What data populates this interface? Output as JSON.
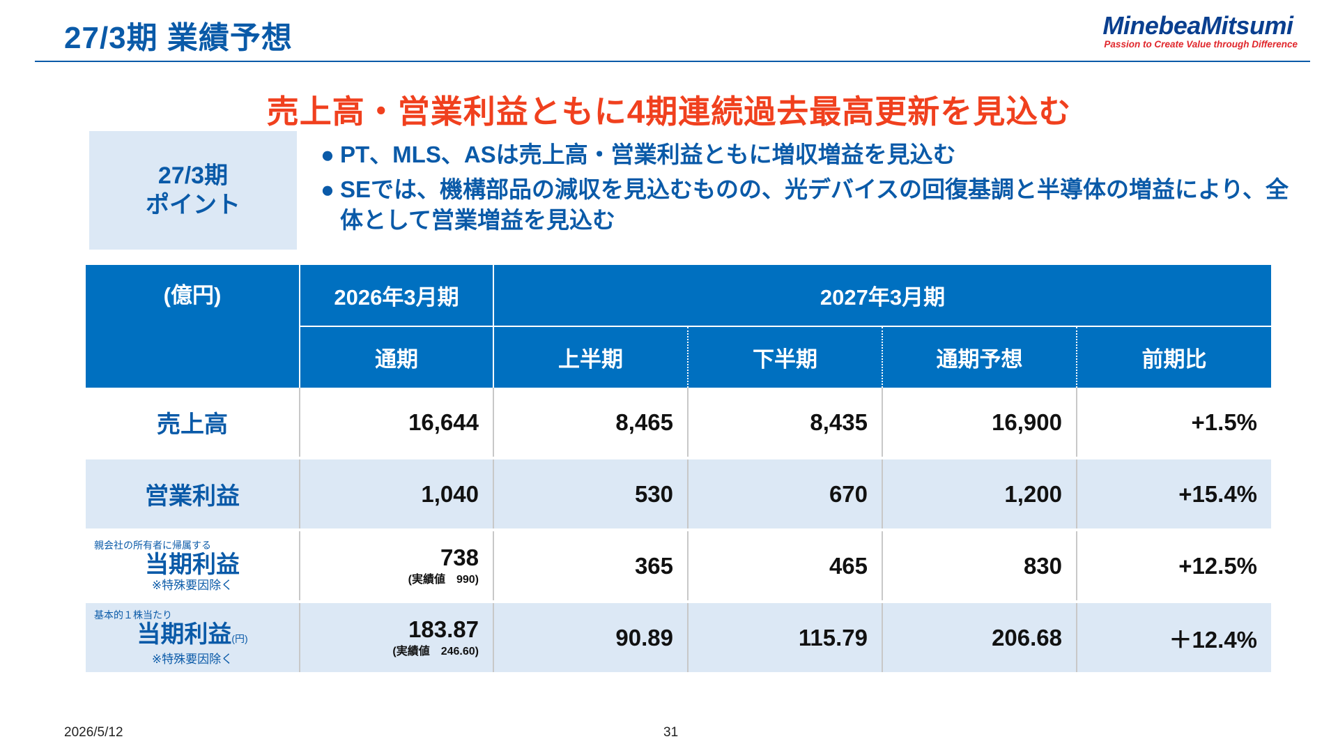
{
  "header": {
    "title": "27/3期 業績予想",
    "logo_name": "MinebeaMitsumi",
    "logo_tagline": "Passion to Create Value through Difference"
  },
  "headline": "売上高・営業利益ともに4期連続過去最高更新を見込む",
  "points": {
    "label_line1": "27/3期",
    "label_line2": "ポイント",
    "bullet_glyph": "●",
    "bullets": [
      "PT、MLS、ASは売上高・営業利益ともに増収増益を見込む",
      "SEでは、機構部品の減収を見込むものの、光デバイスの回復基調と半導体の増益により、全体として営業増益を見込む"
    ]
  },
  "table": {
    "unit_header": "(億円)",
    "fy2026": "2026年3月期",
    "fy2027": "2027年3月期",
    "sub_headers": [
      "通期",
      "上半期",
      "下半期",
      "通期予想",
      "前期比"
    ],
    "rows": [
      {
        "label": "売上高",
        "values": [
          "16,644",
          "8,465",
          "8,435",
          "16,900",
          "+1.5%"
        ]
      },
      {
        "label": "営業利益",
        "values": [
          "1,040",
          "530",
          "670",
          "1,200",
          "+15.4%"
        ]
      },
      {
        "note": "親会社の所有者に帰属する",
        "label": "当期利益",
        "sub": "※特殊要因除く",
        "actual": "(実績値　990)",
        "values": [
          "738",
          "365",
          "465",
          "830",
          "+12.5%"
        ]
      },
      {
        "note": "基本的１株当たり",
        "label": "当期利益",
        "unit": "(円)",
        "sub": "※特殊要因除く",
        "actual": "(実績値　246.60)",
        "values": [
          "183.87",
          "90.89",
          "115.79",
          "206.68",
          "＋12.4%"
        ]
      }
    ]
  },
  "footer": {
    "date": "2026/5/12",
    "page": "31"
  }
}
